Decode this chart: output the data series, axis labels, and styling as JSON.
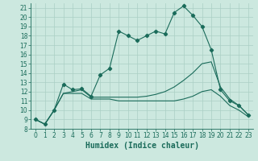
{
  "bg_color": "#cce8df",
  "grid_color": "#aacfc4",
  "line_color": "#1a6b5a",
  "xlabel": "Humidex (Indice chaleur)",
  "xlim": [
    -0.5,
    23.5
  ],
  "ylim": [
    8,
    21.5
  ],
  "yticks": [
    8,
    9,
    10,
    11,
    12,
    13,
    14,
    15,
    16,
    17,
    18,
    19,
    20,
    21
  ],
  "xticks": [
    0,
    1,
    2,
    3,
    4,
    5,
    6,
    7,
    8,
    9,
    10,
    11,
    12,
    13,
    14,
    15,
    16,
    17,
    18,
    19,
    20,
    21,
    22,
    23
  ],
  "line1_x": [
    0,
    1,
    2,
    3,
    4,
    5,
    6,
    7,
    8,
    9,
    10,
    11,
    12,
    13,
    14,
    15,
    16,
    17,
    18,
    19,
    20,
    21,
    22,
    23
  ],
  "line1_y": [
    9.0,
    8.5,
    10.0,
    12.8,
    12.2,
    12.3,
    11.5,
    13.8,
    14.5,
    18.5,
    18.0,
    17.5,
    18.0,
    18.5,
    18.2,
    20.5,
    21.2,
    20.2,
    19.0,
    16.5,
    12.2,
    11.0,
    10.5,
    9.5
  ],
  "line2_x": [
    0,
    1,
    2,
    3,
    4,
    5,
    6,
    7,
    8,
    9,
    10,
    11,
    12,
    13,
    14,
    15,
    16,
    17,
    18,
    19,
    20,
    21,
    22,
    23
  ],
  "line2_y": [
    9.0,
    8.5,
    10.0,
    11.8,
    12.0,
    12.2,
    11.4,
    11.4,
    11.4,
    11.4,
    11.4,
    11.4,
    11.5,
    11.7,
    12.0,
    12.5,
    13.2,
    14.0,
    15.0,
    15.2,
    12.5,
    11.2,
    10.5,
    9.5
  ],
  "line3_x": [
    0,
    1,
    2,
    3,
    4,
    5,
    6,
    7,
    8,
    9,
    10,
    11,
    12,
    13,
    14,
    15,
    16,
    17,
    18,
    19,
    20,
    21,
    22,
    23
  ],
  "line3_y": [
    9.0,
    8.5,
    10.0,
    11.8,
    11.8,
    11.8,
    11.2,
    11.2,
    11.2,
    11.0,
    11.0,
    11.0,
    11.0,
    11.0,
    11.0,
    11.0,
    11.2,
    11.5,
    12.0,
    12.2,
    11.5,
    10.5,
    10.0,
    9.3
  ],
  "markers_x": [
    0,
    1,
    2,
    3,
    4,
    5,
    6,
    7,
    8,
    9,
    10,
    11,
    12,
    13,
    14,
    15,
    16,
    17,
    18,
    19,
    20,
    21,
    22,
    23
  ],
  "markers_y": [
    9.0,
    8.5,
    10.0,
    12.8,
    12.2,
    12.3,
    11.5,
    13.8,
    14.5,
    18.5,
    18.0,
    17.5,
    18.0,
    18.5,
    18.2,
    20.5,
    21.2,
    20.2,
    19.0,
    16.5,
    12.2,
    11.0,
    10.5,
    9.5
  ],
  "xlabel_fontsize": 7,
  "tick_fontsize": 5.5,
  "linewidth": 0.8,
  "markersize": 2.2
}
